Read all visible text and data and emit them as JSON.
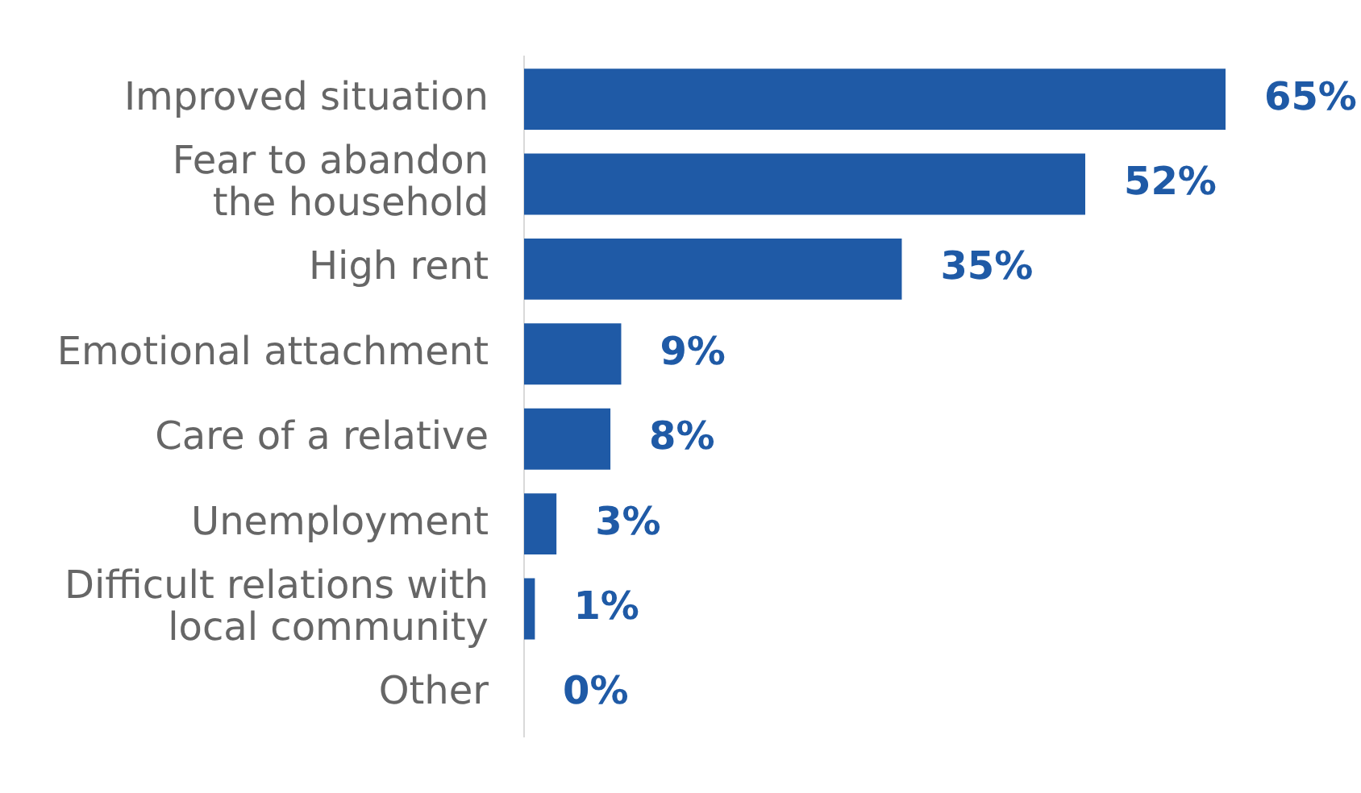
{
  "chart_data": {
    "type": "bar",
    "orientation": "horizontal",
    "categories": [
      "Improved situation",
      "Fear to abandon\nthe household",
      "High rent",
      "Emotional attachment",
      "Care of a relative",
      "Unemployment",
      "Difficult relations with\nlocal community",
      "Other"
    ],
    "values": [
      65,
      52,
      35,
      9,
      8,
      3,
      1,
      0
    ],
    "value_labels": [
      "65%",
      "52%",
      "35%",
      "9%",
      "8%",
      "3%",
      "1%",
      "0%"
    ],
    "color": "#1f5aa6",
    "grid": false,
    "legend": false
  }
}
